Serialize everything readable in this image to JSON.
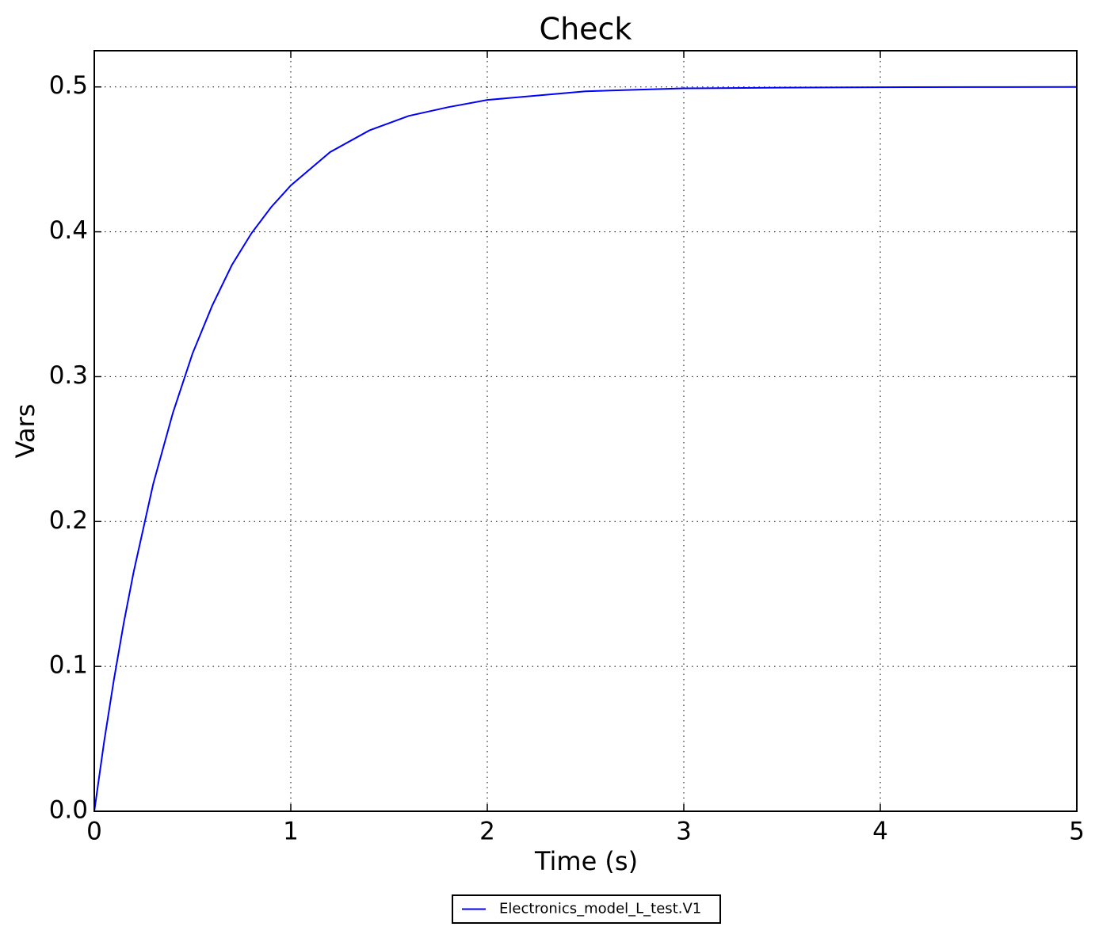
{
  "chart_data": {
    "type": "line",
    "title": "Check",
    "x_label": "Time (s)",
    "y_label": "Vars",
    "x": [
      0,
      0.05,
      0.1,
      0.15,
      0.2,
      0.3,
      0.4,
      0.5,
      0.6,
      0.7,
      0.8,
      0.9,
      1.0,
      1.2,
      1.4,
      1.6,
      1.8,
      2.0,
      2.5,
      3.0,
      3.5,
      4.0,
      4.5,
      5.0
    ],
    "series": [
      {
        "name": "Electronics_model_L_test.V1",
        "color": "#0000ff",
        "values": [
          0,
          0.048,
          0.091,
          0.13,
          0.165,
          0.226,
          0.275,
          0.316,
          0.349,
          0.377,
          0.399,
          0.417,
          0.432,
          0.455,
          0.47,
          0.48,
          0.486,
          0.491,
          0.497,
          0.499,
          0.4995,
          0.4998,
          0.4999,
          0.5
        ]
      }
    ],
    "xlim": [
      0,
      5
    ],
    "ylim": [
      0,
      0.525
    ],
    "xticks": [
      0,
      1,
      2,
      3,
      4,
      5
    ],
    "yticks": [
      {
        "value": 0,
        "label": "0.0"
      },
      0.1,
      0.2,
      0.3,
      0.4,
      0.5
    ],
    "grid": true,
    "legend": "bottom"
  }
}
